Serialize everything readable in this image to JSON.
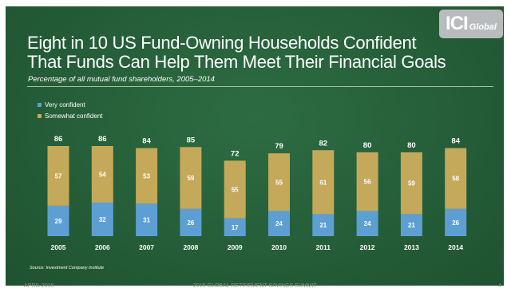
{
  "logo": {
    "main": "ICI",
    "sub": "Global"
  },
  "title_line1": "Eight in 10 US Fund-Owning Households Confident",
  "title_line2": "That Funds Can Help Them Meet Their Financial Goals",
  "subtitle": "Percentage of all mutual fund shareholders, 2005–2014",
  "source": "Source: Investment Company Institute",
  "footer": {
    "left": "APRIL 2015",
    "center": "2015 GLOBAL RETIREMENT SAVINGS SUMMIT",
    "right": "4"
  },
  "colors": {
    "background": "#26603a",
    "very_confident": "#5d9fd3",
    "somewhat_confident": "#c4a95a"
  },
  "chart_data": {
    "type": "bar",
    "stacked": true,
    "categories": [
      "2005",
      "2006",
      "2007",
      "2008",
      "2009",
      "2010",
      "2011",
      "2012",
      "2013",
      "2014"
    ],
    "series": [
      {
        "name": "Very confident",
        "values": [
          29,
          32,
          31,
          26,
          17,
          24,
          21,
          24,
          21,
          26
        ]
      },
      {
        "name": "Somewhat confident",
        "values": [
          57,
          54,
          53,
          59,
          55,
          55,
          61,
          56,
          59,
          58
        ]
      }
    ],
    "totals": [
      86,
      86,
      84,
      85,
      72,
      79,
      82,
      80,
      80,
      84
    ],
    "legend": "top-left",
    "grid": false
  }
}
